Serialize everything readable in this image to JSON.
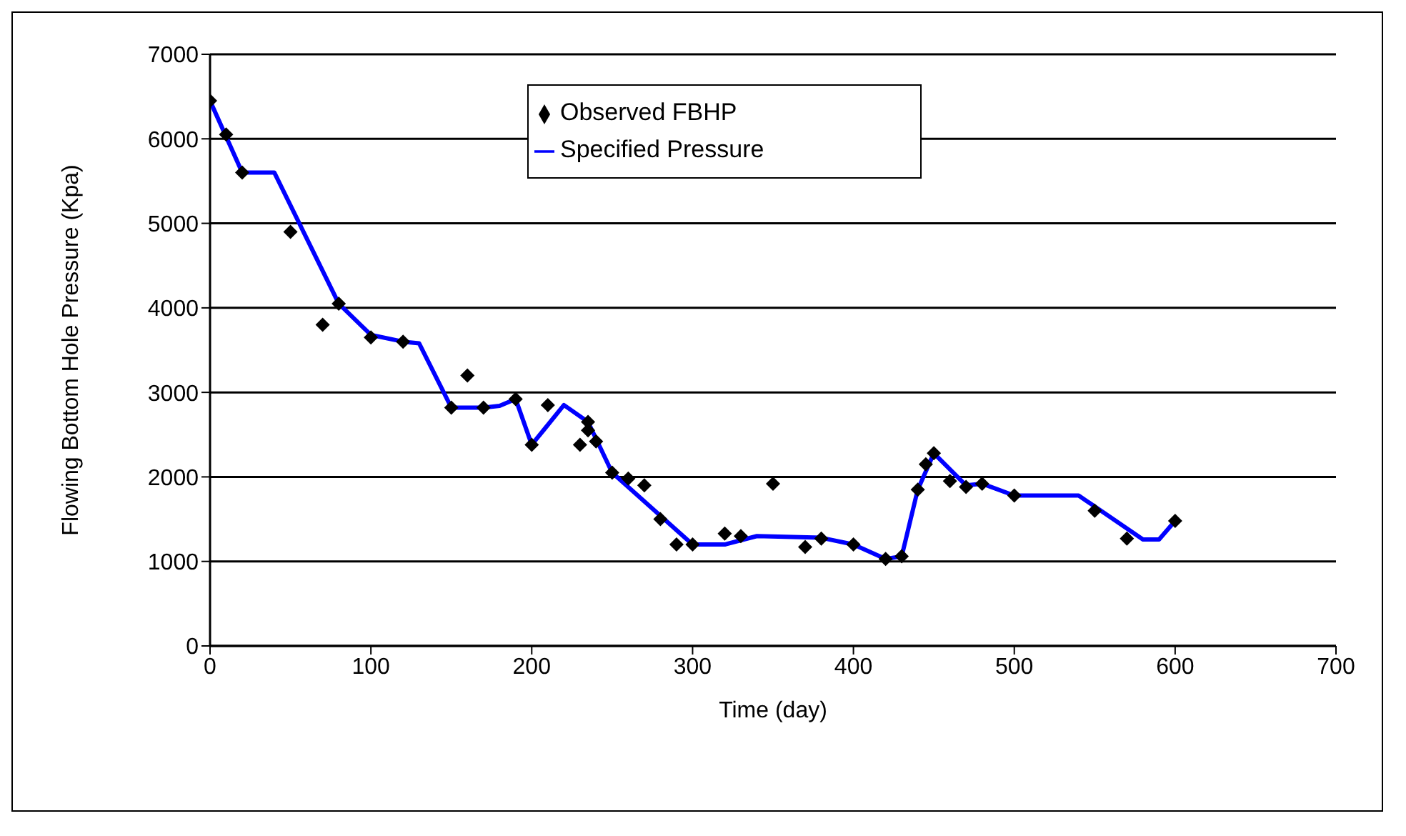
{
  "chart_data": {
    "type": "line",
    "xlabel": "Time (day)",
    "ylabel": "Flowing Bottom Hole Pressure (Kpa)",
    "xlim": [
      0,
      700
    ],
    "xticks": [
      0,
      100,
      200,
      300,
      400,
      500,
      600,
      700
    ],
    "ylim": [
      0,
      7000
    ],
    "yticks": [
      0,
      1000,
      2000,
      3000,
      4000,
      5000,
      6000,
      7000
    ],
    "grid": "y",
    "legend": "top",
    "series": [
      {
        "name": "Observed FBHP",
        "type": "scatter",
        "marker": "diamond",
        "color": "#000000",
        "x": [
          0,
          10,
          20,
          50,
          70,
          80,
          100,
          120,
          150,
          160,
          170,
          190,
          200,
          210,
          230,
          235,
          235,
          240,
          250,
          260,
          270,
          280,
          290,
          300,
          320,
          330,
          350,
          370,
          380,
          400,
          420,
          430,
          440,
          445,
          450,
          460,
          470,
          480,
          500,
          550,
          570,
          600
        ],
        "values": [
          6450,
          6050,
          5600,
          4900,
          3800,
          4050,
          3650,
          3600,
          2820,
          3200,
          2820,
          2920,
          2380,
          2850,
          2380,
          2650,
          2550,
          2420,
          2050,
          1980,
          1900,
          1500,
          1200,
          1200,
          1330,
          1300,
          1920,
          1170,
          1270,
          1200,
          1030,
          1060,
          1850,
          2150,
          2280,
          1950,
          1880,
          1920,
          1780,
          1600,
          1270,
          1480
        ]
      },
      {
        "name": "Specified Pressure",
        "marker": "none",
        "line_style": "solid",
        "color": "#0000ff",
        "x": [
          0,
          20,
          40,
          80,
          100,
          120,
          130,
          150,
          170,
          180,
          190,
          200,
          220,
          235,
          250,
          300,
          320,
          340,
          380,
          400,
          420,
          430,
          440,
          450,
          470,
          480,
          500,
          540,
          580,
          590,
          600
        ],
        "values": [
          6450,
          5600,
          5600,
          4050,
          3680,
          3600,
          3580,
          2820,
          2820,
          2840,
          2920,
          2380,
          2850,
          2650,
          2050,
          1200,
          1200,
          1300,
          1280,
          1200,
          1030,
          1060,
          1850,
          2280,
          1900,
          1920,
          1780,
          1780,
          1260,
          1260,
          1480
        ]
      }
    ]
  }
}
